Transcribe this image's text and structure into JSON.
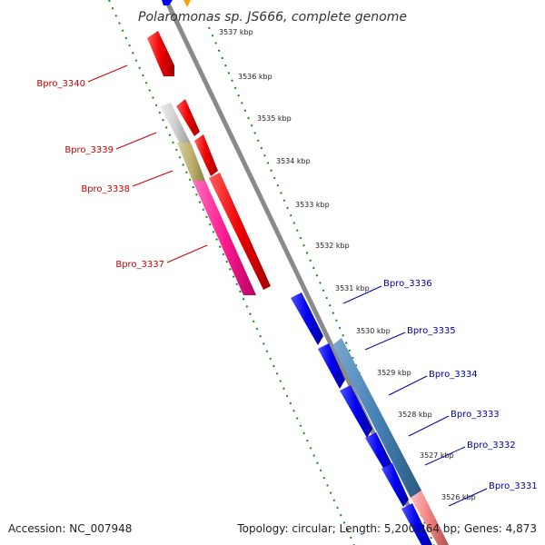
{
  "title": "Polaromonas sp. JS666, complete genome",
  "footer": {
    "accession": "Accession: NC_007948",
    "topology": "Topology: circular; Length: 5,200,264 bp; Genes: 4,873"
  },
  "colors": {
    "backbone": "#8a8a8a",
    "dots": "#1a8a1a",
    "reverse_label": "#cc0000",
    "forward_label": "#0000aa"
  },
  "ticks": [
    "3537 kbp",
    "3536 kbp",
    "3535 kbp",
    "3534 kbp",
    "3533 kbp",
    "3532 kbp",
    "3531 kbp",
    "3530 kbp",
    "3529 kbp",
    "3528 kbp",
    "3527 kbp",
    "3526 kbp"
  ],
  "labels_reverse": [
    "Bpro_3340",
    "Bpro_3339",
    "Bpro_3338",
    "Bpro_3337"
  ],
  "labels_forward": [
    "Bpro_3336",
    "Bpro_3335",
    "Bpro_3334",
    "Bpro_3333",
    "Bpro_3332",
    "Bpro_3331"
  ]
}
